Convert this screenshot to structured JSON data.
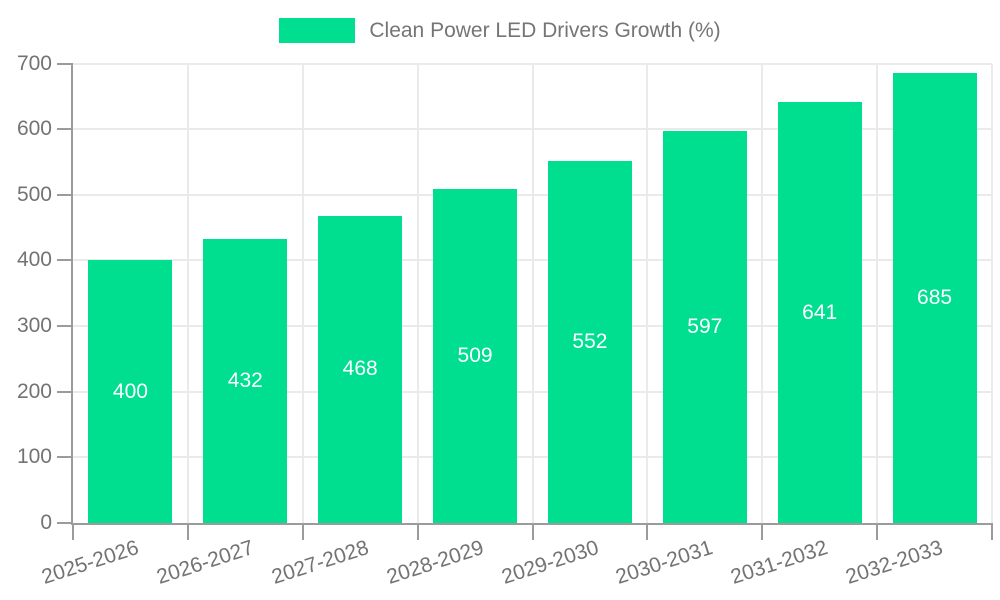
{
  "chart_data": {
    "type": "bar",
    "title": "Clean Power LED Drivers Growth (%)",
    "categories": [
      "2025-2026",
      "2026-2027",
      "2027-2028",
      "2028-2029",
      "2029-2030",
      "2030-2031",
      "2031-2032",
      "2032-2033"
    ],
    "values": [
      400,
      432,
      468,
      509,
      552,
      597,
      641,
      685
    ],
    "value_labels": [
      "400",
      "432",
      "468",
      "509",
      "552",
      "597",
      "641",
      "685"
    ],
    "xlabel": "",
    "ylabel": "",
    "ylim": [
      0,
      700
    ],
    "ytick_step": 100,
    "ytick_labels": [
      "0",
      "100",
      "200",
      "300",
      "400",
      "500",
      "600",
      "700"
    ],
    "grid": true,
    "legend_position": "top-center",
    "colors": {
      "bar": "#00DE90",
      "grid": "#eaeaea",
      "axis": "#9b9b9b",
      "tick_label": "#737373",
      "legend_text": "#757575",
      "value_label": "#ffffff"
    }
  }
}
